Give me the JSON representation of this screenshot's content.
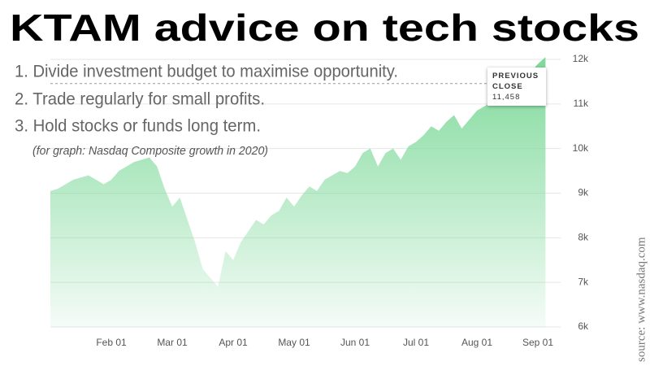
{
  "chart_data": {
    "type": "area",
    "title": "KTAM advice on tech stocks",
    "notes": [
      "1. Divide investment budget to maximise opportunity.",
      "2. Trade regularly for small profits.",
      "3. Hold stocks or funds long term."
    ],
    "subtitle": "(for graph: Nasdaq Composite growth in 2020)",
    "source": "source: www.nasdaq.com",
    "previous_close": {
      "title": "PREVIOUS CLOSE",
      "value": 11458,
      "label": "11,458"
    },
    "categories": [
      null,
      null,
      null,
      null,
      null,
      null,
      null,
      null,
      "Feb 01",
      null,
      null,
      null,
      null,
      null,
      null,
      null,
      "Mar 01",
      null,
      null,
      null,
      null,
      null,
      null,
      null,
      "Apr 01",
      null,
      null,
      null,
      null,
      null,
      null,
      null,
      "May 01",
      null,
      null,
      null,
      null,
      null,
      null,
      null,
      "Jun 01",
      null,
      null,
      null,
      null,
      null,
      null,
      null,
      "Jul 01",
      null,
      null,
      null,
      null,
      null,
      null,
      null,
      "Aug 01",
      null,
      null,
      null,
      null,
      null,
      null,
      null,
      "Sep 01",
      null
    ],
    "values": [
      9050,
      9100,
      9200,
      9300,
      9350,
      9400,
      9300,
      9200,
      9300,
      9500,
      9600,
      9700,
      9750,
      9800,
      9600,
      9100,
      8700,
      8900,
      8400,
      7900,
      7300,
      7100,
      6900,
      7700,
      7500,
      7900,
      8150,
      8400,
      8300,
      8500,
      8600,
      8900,
      8700,
      8950,
      9150,
      9050,
      9300,
      9400,
      9500,
      9450,
      9600,
      9900,
      10000,
      9600,
      9900,
      10000,
      9750,
      10050,
      10150,
      10300,
      10500,
      10400,
      10600,
      10750,
      10450,
      10650,
      10850,
      10950,
      11050,
      11150,
      11250,
      11300,
      11500,
      11700,
      11900,
      12050
    ],
    "color": "#7ed99a",
    "ylim": [
      6000,
      12000
    ],
    "yticks": [
      {
        "value": 6000,
        "label": "6k"
      },
      {
        "value": 7000,
        "label": "7k"
      },
      {
        "value": 8000,
        "label": "8k"
      },
      {
        "value": 9000,
        "label": "9k"
      },
      {
        "value": 10000,
        "label": "10k"
      },
      {
        "value": 11000,
        "label": "11k"
      },
      {
        "value": 12000,
        "label": "12k"
      }
    ],
    "grid": true
  }
}
